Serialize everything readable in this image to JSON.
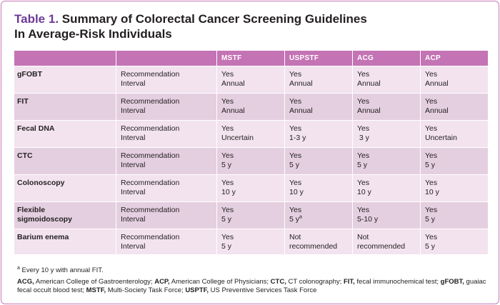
{
  "title": {
    "number": "Table 1.",
    "text": "Summary of Colorectal Cancer Screening Guidelines",
    "text2": "In Average-Risk Individuals"
  },
  "table": {
    "headers": [
      "",
      "",
      "MSTF",
      "USPSTF",
      "ACG",
      "ACP"
    ],
    "rows": [
      {
        "test": "gFOBT",
        "labels": [
          "Recommendation",
          "Interval"
        ],
        "cells": [
          [
            "Yes",
            "Annual"
          ],
          [
            "Yes",
            "Annual"
          ],
          [
            "Yes",
            "Annual"
          ],
          [
            "Yes",
            "Annual"
          ]
        ]
      },
      {
        "test": "FIT",
        "labels": [
          "Recommendation",
          "Interval"
        ],
        "cells": [
          [
            "Yes",
            "Annual"
          ],
          [
            "Yes",
            "Annual"
          ],
          [
            "Yes",
            "Annual"
          ],
          [
            "Yes",
            "Annual"
          ]
        ]
      },
      {
        "test": "Fecal DNA",
        "labels": [
          "Recommendation",
          "Interval"
        ],
        "cells": [
          [
            "Yes",
            "Uncertain"
          ],
          [
            "Yes",
            "1-3 y"
          ],
          [
            "Yes",
            " 3 y"
          ],
          [
            "Yes",
            "Uncertain"
          ]
        ]
      },
      {
        "test": "CTC",
        "labels": [
          "Recommendation",
          "Interval"
        ],
        "cells": [
          [
            "Yes",
            "5 y"
          ],
          [
            "Yes",
            "5 y"
          ],
          [
            "Yes",
            "5 y"
          ],
          [
            "Yes",
            "5 y"
          ]
        ]
      },
      {
        "test": "Colonoscopy",
        "labels": [
          "Recommendation",
          "Interval"
        ],
        "cells": [
          [
            "Yes",
            "10 y"
          ],
          [
            "Yes",
            "10 y"
          ],
          [
            "Yes",
            "10 y"
          ],
          [
            "Yes",
            "10 y"
          ]
        ]
      },
      {
        "test": "Flexible sigmoidoscopy",
        "test_lines": [
          "Flexible",
          "sigmoidoscopy"
        ],
        "labels": [
          "Recommendation",
          "Interval"
        ],
        "cells": [
          [
            "Yes",
            "5 y"
          ],
          [
            "Yes",
            "5 y"
          ],
          [
            "Yes",
            "5-10 y"
          ],
          [
            "Yes",
            "5 y"
          ]
        ]
      },
      {
        "test": "Barium enema",
        "labels": [
          "Recommendation",
          "Interval"
        ],
        "cells": [
          [
            "Yes",
            "5 y"
          ],
          [
            "Not",
            "recommended"
          ],
          [
            "Not",
            "recommended"
          ],
          [
            "Yes",
            "5 y"
          ]
        ]
      }
    ],
    "superscript": "a"
  },
  "footnote_a": {
    "marker": "a",
    "text": " Every 10 y with annual FIT."
  },
  "abbreviations": [
    {
      "abbr": "ACG,",
      "def": " American College of Gastroenterology; "
    },
    {
      "abbr": "ACP,",
      "def": " American College of Physicians; "
    },
    {
      "abbr": "CTC,",
      "def": " CT colonography; "
    },
    {
      "abbr": "FIT,",
      "def": " fecal immunochemical test; "
    },
    {
      "abbr": "gFOBT,",
      "def": " guaiac fecal occult blood test; "
    },
    {
      "abbr": "MSTF,",
      "def": " Multi-Society Task Force; "
    },
    {
      "abbr": "USPTF,",
      "def": " US Preventive Services Task Force"
    }
  ],
  "colors": {
    "header": "#c473b4",
    "row_light": "#f2e3ef",
    "row_dark": "#e4cfe0",
    "title_accent": "#6d3a97"
  }
}
